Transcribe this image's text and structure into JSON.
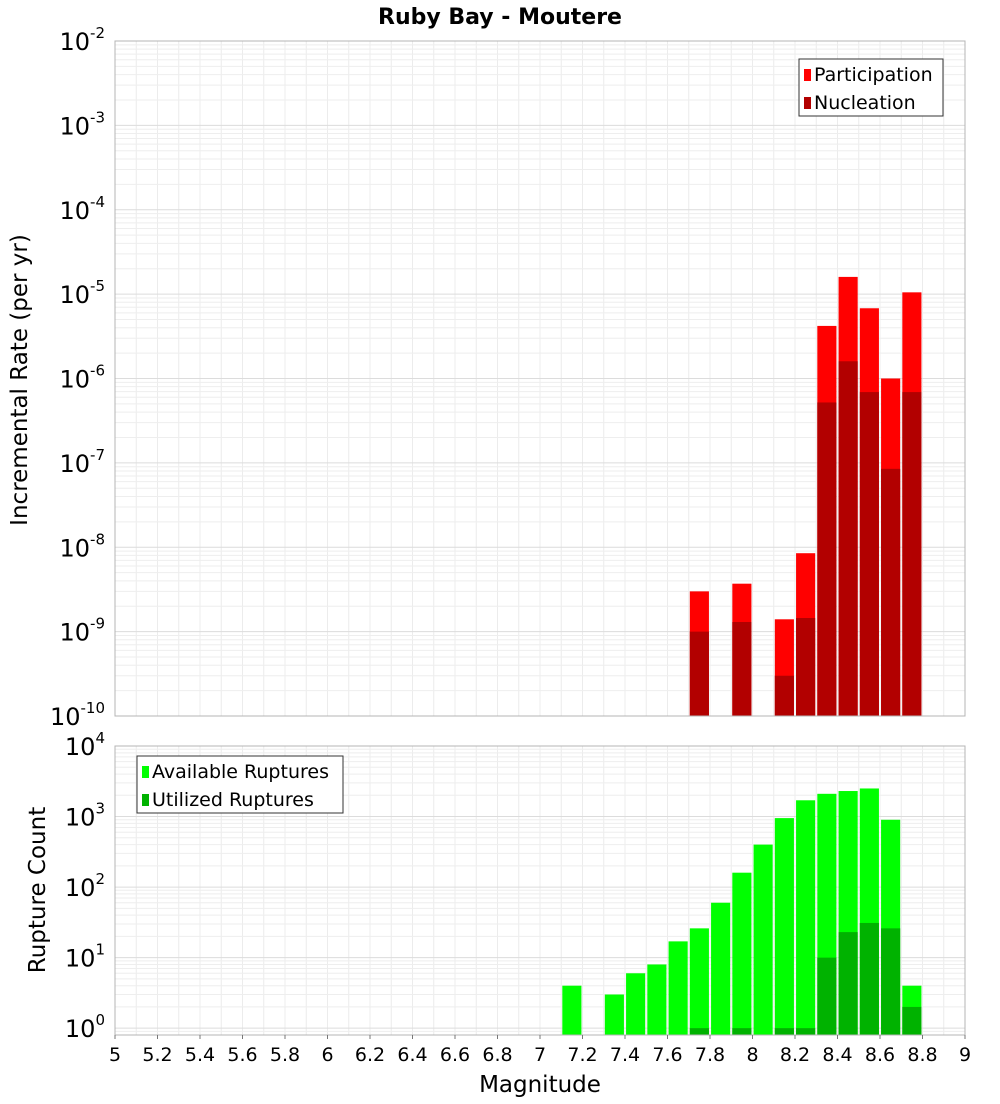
{
  "chart_data": [
    {
      "type": "bar",
      "title": "Ruby Bay - Moutere",
      "xlabel": "",
      "ylabel": "Incremental Rate (per yr)",
      "y_scale": "log",
      "ylim": [
        1e-10,
        0.01
      ],
      "xlim": [
        5,
        9
      ],
      "bar_width": 0.09,
      "grid": true,
      "legend_position": "top-right",
      "x": [
        7.75,
        7.95,
        8.15,
        8.25,
        8.35,
        8.45,
        8.55,
        8.65,
        8.75
      ],
      "series": [
        {
          "name": "Participation",
          "color": "#ff0000",
          "values": [
            3e-09,
            3.7e-09,
            1.4e-09,
            8.5e-09,
            4.2e-06,
            1.6e-05,
            6.8e-06,
            1e-06,
            1.05e-05
          ]
        },
        {
          "name": "Nucleation",
          "color": "#b20000",
          "values": [
            1e-09,
            1.3e-09,
            3e-10,
            1.45e-09,
            5.2e-07,
            1.6e-06,
            6.9e-07,
            8.5e-08,
            6.9e-07
          ]
        }
      ],
      "ytick_exponents": [
        "-2",
        "-3",
        "-4",
        "-5",
        "-6",
        "-7",
        "-8",
        "-9",
        "-10"
      ],
      "ytick_base": "10"
    },
    {
      "type": "bar",
      "title": "",
      "xlabel": "Magnitude",
      "ylabel": "Rupture Count",
      "y_scale": "log",
      "ylim": [
        0.8,
        10000.0
      ],
      "xlim": [
        5,
        9
      ],
      "bar_width": 0.09,
      "grid": true,
      "legend_position": "top-left",
      "x": [
        7.15,
        7.35,
        7.45,
        7.55,
        7.65,
        7.75,
        7.85,
        7.95,
        8.05,
        8.15,
        8.25,
        8.35,
        8.45,
        8.55,
        8.65,
        8.75
      ],
      "series": [
        {
          "name": "Available Ruptures",
          "color": "#00ff00",
          "values": [
            4,
            3,
            6,
            8,
            17,
            26,
            60,
            160,
            400,
            950,
            1700,
            2100,
            2300,
            2500,
            900,
            4
          ]
        },
        {
          "name": "Utilized Ruptures",
          "color": "#00b200",
          "values": [
            null,
            null,
            null,
            null,
            null,
            1,
            null,
            1,
            null,
            1,
            1,
            10,
            23,
            31,
            26,
            2
          ]
        }
      ],
      "xtick_labels": [
        "5",
        "5.2",
        "5.4",
        "5.6",
        "5.8",
        "6",
        "6.2",
        "6.4",
        "6.6",
        "6.8",
        "7",
        "7.2",
        "7.4",
        "7.6",
        "7.8",
        "8",
        "8.2",
        "8.4",
        "8.6",
        "8.8",
        "9"
      ],
      "ytick_exponents": [
        "4",
        "3",
        "2",
        "1",
        "0"
      ],
      "ytick_base": "10"
    }
  ]
}
